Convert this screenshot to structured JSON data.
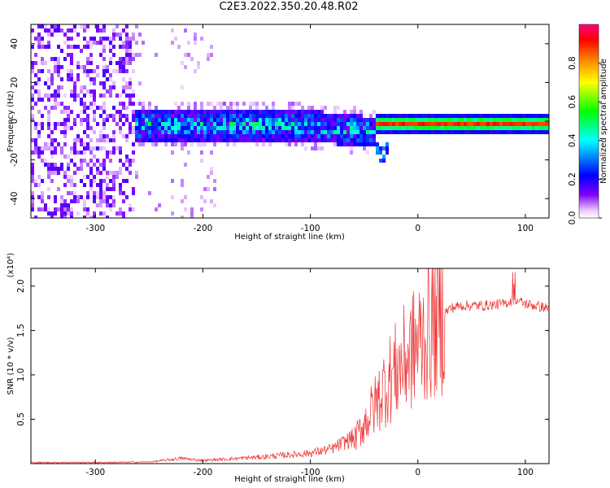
{
  "title": "C2E3.2022.350.20.48.R02",
  "chart_data": [
    {
      "type": "heatmap",
      "xlabel": "Height of straight line (km)",
      "ylabel": "Frequency (Hz)",
      "xlim": [
        -360,
        122
      ],
      "ylim": [
        -50,
        50
      ],
      "xticks": [
        -300,
        -200,
        -100,
        0,
        100
      ],
      "yticks": [
        -40,
        -20,
        0,
        20,
        40
      ],
      "colorbar": {
        "label": "Normalized spectral amplitude",
        "range": [
          0.0,
          1.0
        ],
        "ticks": [
          "0.0",
          "0.2",
          "0.4",
          "0.6",
          "0.8"
        ],
        "colormap": [
          "#ffffff",
          "#7f00ff",
          "#0000ff",
          "#00ffff",
          "#00ff00",
          "#ffff00",
          "#ff8000",
          "#ff0000",
          "#ff0080"
        ]
      },
      "features": [
        {
          "region": "broadband noise",
          "x_range": [
            -360,
            -260
          ],
          "freq_range": [
            -50,
            50
          ],
          "amplitude": 0.05
        },
        {
          "region": "noisy band",
          "x_range": [
            -270,
            -40
          ],
          "freq_range": [
            -12,
            8
          ],
          "amplitude": 0.35
        },
        {
          "region": "narrow line",
          "x_range": [
            -40,
            122
          ],
          "freq_center": 0,
          "amplitude": 0.9
        }
      ]
    },
    {
      "type": "line",
      "xlabel": "Height of straight line (km)",
      "ylabel": "SNR (10 * v/v)",
      "y_multiplier": "(x10⁴)",
      "xlim": [
        -360,
        122
      ],
      "ylim": [
        0,
        2.2
      ],
      "xticks": [
        -300,
        -200,
        -100,
        0,
        100
      ],
      "yticks": [
        0.5,
        1.0,
        1.5,
        2.0
      ],
      "series": [
        {
          "color": "#ee3333",
          "x": [
            -360,
            -300,
            -250,
            -220,
            -200,
            -150,
            -100,
            -80,
            -60,
            -50,
            -40,
            -30,
            -20,
            -10,
            0,
            10,
            20,
            30,
            40,
            60,
            80,
            90,
            100,
            122
          ],
          "y": [
            0.01,
            0.01,
            0.015,
            0.05,
            0.03,
            0.06,
            0.1,
            0.14,
            0.25,
            0.45,
            0.65,
            0.9,
            1.05,
            1.2,
            1.35,
            1.5,
            1.65,
            1.75,
            1.78,
            1.78,
            1.8,
            1.85,
            1.8,
            1.75
          ]
        }
      ]
    }
  ]
}
